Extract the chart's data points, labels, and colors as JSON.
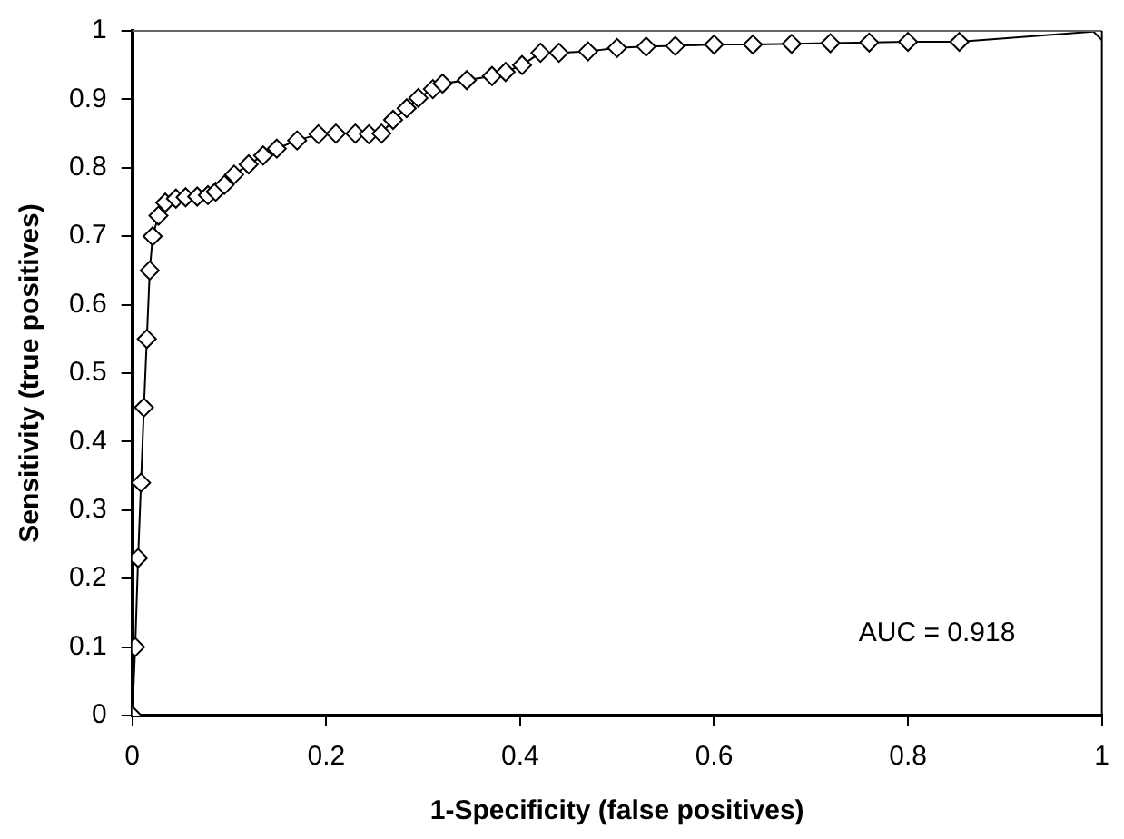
{
  "chart_data": {
    "type": "line",
    "xlabel": "1-Specificity (false positives)",
    "ylabel": "Sensitivity (true positives)",
    "annotations": [
      "AUC = 0.918"
    ],
    "x": [
      0,
      0.003,
      0.006,
      0.009,
      0.012,
      0.015,
      0.018,
      0.021,
      0.027,
      0.034,
      0.045,
      0.055,
      0.067,
      0.078,
      0.086,
      0.095,
      0.105,
      0.12,
      0.135,
      0.149,
      0.17,
      0.192,
      0.21,
      0.23,
      0.244,
      0.257,
      0.269,
      0.283,
      0.295,
      0.31,
      0.32,
      0.345,
      0.371,
      0.385,
      0.402,
      0.421,
      0.44,
      0.47,
      0.5,
      0.53,
      0.56,
      0.6,
      0.64,
      0.68,
      0.72,
      0.76,
      0.8,
      0.853,
      1
    ],
    "series": [
      {
        "color": "#000000",
        "values": [
          0,
          0.1,
          0.23,
          0.34,
          0.45,
          0.55,
          0.65,
          0.7,
          0.73,
          0.749,
          0.755,
          0.757,
          0.758,
          0.76,
          0.765,
          0.775,
          0.79,
          0.805,
          0.818,
          0.828,
          0.84,
          0.849,
          0.85,
          0.85,
          0.849,
          0.85,
          0.87,
          0.887,
          0.902,
          0.915,
          0.923,
          0.928,
          0.934,
          0.94,
          0.95,
          0.968,
          0.968,
          0.97,
          0.975,
          0.977,
          0.978,
          0.98,
          0.98,
          0.981,
          0.982,
          0.983,
          0.984,
          0.984,
          1
        ]
      }
    ],
    "xlim": [
      0,
      1
    ],
    "ylim": [
      0,
      1
    ],
    "xticks": [
      0,
      0.2,
      0.4,
      0.6,
      0.8,
      1
    ],
    "yticks": [
      0,
      0.1,
      0.2,
      0.3,
      0.4,
      0.5,
      0.6,
      0.7,
      0.8,
      0.9,
      1
    ],
    "grid": false,
    "legend": false,
    "marker": "diamond",
    "line_style": "solid"
  }
}
